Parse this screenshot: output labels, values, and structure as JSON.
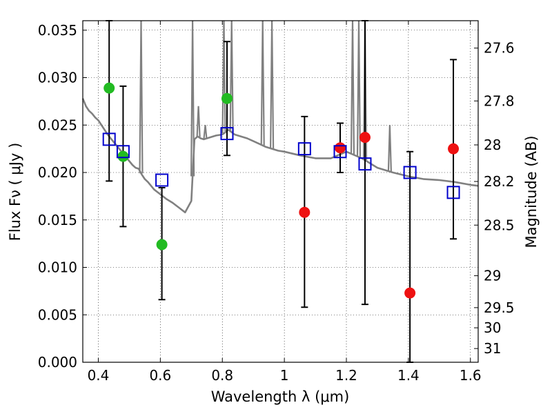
{
  "chart_data": {
    "type": "scatter",
    "xlabel": "Wavelength  λ (μm)",
    "ylabel": "Flux  Fν  ( μJy )",
    "y2label": "Magnitude (AB)",
    "xlim": [
      0.35,
      1.625
    ],
    "ylim": [
      0.0,
      0.036
    ],
    "grid": true,
    "x_ticks": [
      0.4,
      0.6,
      0.8,
      1.0,
      1.2,
      1.4,
      1.6
    ],
    "x_tick_labels": [
      "0.4",
      "0.6",
      "0.8",
      "1",
      "1.2",
      "1.4",
      "1.6"
    ],
    "y_ticks": [
      0.0,
      0.005,
      0.01,
      0.015,
      0.02,
      0.025,
      0.03,
      0.035
    ],
    "y_tick_labels": [
      "0.000",
      "0.005",
      "0.010",
      "0.015",
      "0.020",
      "0.025",
      "0.030",
      "0.035"
    ],
    "y2_ticks": [
      27.6,
      27.8,
      28,
      28.2,
      28.5,
      29,
      29.5,
      30,
      31
    ],
    "y2_tick_labels": [
      "27.6",
      "27.8",
      "28",
      "28.2",
      "28.5",
      "29",
      "29.5",
      "30",
      "31"
    ],
    "series": [
      {
        "name": "observed-green",
        "color": "#22bb22",
        "points": [
          {
            "x": 0.435,
            "y": 0.0289
          },
          {
            "x": 0.48,
            "y": 0.0217
          },
          {
            "x": 0.605,
            "y": 0.0124
          },
          {
            "x": 0.815,
            "y": 0.0278
          }
        ]
      },
      {
        "name": "observed-red",
        "color": "#ee1111",
        "points": [
          {
            "x": 1.065,
            "y": 0.0158
          },
          {
            "x": 1.18,
            "y": 0.0226
          },
          {
            "x": 1.26,
            "y": 0.0237
          },
          {
            "x": 1.405,
            "y": 0.0073
          },
          {
            "x": 1.545,
            "y": 0.0225
          }
        ]
      },
      {
        "name": "model-photometry",
        "color": "#0000cc",
        "points": [
          {
            "x": 0.435,
            "y": 0.0235,
            "err_lo": 0.0191,
            "err_hi": 0.036
          },
          {
            "x": 0.48,
            "y": 0.0222,
            "err_lo": 0.0143,
            "err_hi": 0.0291
          },
          {
            "x": 0.605,
            "y": 0.0192,
            "err_lo": 0.0066,
            "err_hi": 0.0184
          },
          {
            "x": 0.815,
            "y": 0.0241,
            "err_lo": 0.0218,
            "err_hi": 0.0338
          },
          {
            "x": 1.065,
            "y": 0.0225,
            "err_lo": 0.0058,
            "err_hi": 0.0259
          },
          {
            "x": 1.18,
            "y": 0.0222,
            "err_lo": 0.02,
            "err_hi": 0.0252
          },
          {
            "x": 1.26,
            "y": 0.0209,
            "err_lo": 0.0061,
            "err_hi": 0.036
          },
          {
            "x": 1.405,
            "y": 0.02,
            "err_lo": 0.0,
            "err_hi": 0.0222
          },
          {
            "x": 1.545,
            "y": 0.0179,
            "err_lo": 0.013,
            "err_hi": 0.0319
          }
        ]
      }
    ],
    "sed_model": {
      "name": "template-spectrum",
      "color": "#808080",
      "x": [
        0.35,
        0.36,
        0.37,
        0.38,
        0.39,
        0.4,
        0.41,
        0.42,
        0.43,
        0.44,
        0.45,
        0.46,
        0.47,
        0.48,
        0.49,
        0.5,
        0.51,
        0.52,
        0.53,
        0.54,
        0.55,
        0.56,
        0.58,
        0.6,
        0.62,
        0.64,
        0.66,
        0.68,
        0.7,
        0.71,
        0.72,
        0.73,
        0.74,
        0.76,
        0.78,
        0.8,
        0.82,
        0.84,
        0.86,
        0.88,
        0.9,
        0.92,
        0.94,
        0.96,
        0.98,
        1.0,
        1.05,
        1.1,
        1.15,
        1.2,
        1.25,
        1.3,
        1.35,
        1.4,
        1.45,
        1.5,
        1.55,
        1.6,
        1.625
      ],
      "y": [
        0.0278,
        0.027,
        0.0265,
        0.0262,
        0.0258,
        0.0255,
        0.025,
        0.0245,
        0.024,
        0.0236,
        0.0232,
        0.0228,
        0.0224,
        0.022,
        0.0216,
        0.0212,
        0.0208,
        0.0205,
        0.0204,
        0.0198,
        0.0193,
        0.019,
        0.0182,
        0.0177,
        0.0172,
        0.0168,
        0.0163,
        0.0158,
        0.017,
        0.0235,
        0.0238,
        0.0236,
        0.0235,
        0.0237,
        0.0239,
        0.024,
        0.0245,
        0.024,
        0.0238,
        0.0236,
        0.0233,
        0.023,
        0.0227,
        0.0225,
        0.0223,
        0.0222,
        0.0218,
        0.0215,
        0.0215,
        0.0222,
        0.0215,
        0.0205,
        0.02,
        0.0196,
        0.0193,
        0.0192,
        0.019,
        0.0187,
        0.0186
      ],
      "emission_lines": [
        {
          "x": 0.538,
          "y": 0.036
        },
        {
          "x": 0.704,
          "y": 0.036
        },
        {
          "x": 0.723,
          "y": 0.027
        },
        {
          "x": 0.745,
          "y": 0.025
        },
        {
          "x": 0.805,
          "y": 0.036
        },
        {
          "x": 0.83,
          "y": 0.036
        },
        {
          "x": 0.93,
          "y": 0.036
        },
        {
          "x": 0.96,
          "y": 0.036
        },
        {
          "x": 1.22,
          "y": 0.036
        },
        {
          "x": 1.24,
          "y": 0.036
        },
        {
          "x": 1.26,
          "y": 0.036
        },
        {
          "x": 1.34,
          "y": 0.025
        }
      ]
    }
  }
}
